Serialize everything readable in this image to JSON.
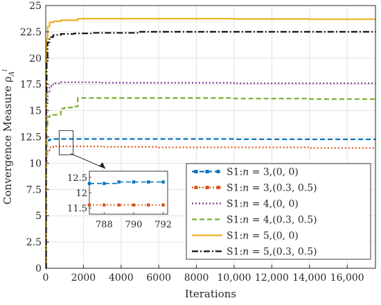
{
  "chart_data": {
    "type": "line",
    "xlabel": "Iterations",
    "ylabel": "Convergence Measure ρ",
    "ylabel_sub": "A",
    "ylabel_sup": "l",
    "xlim": [
      0,
      17500
    ],
    "ylim": [
      0,
      25
    ],
    "grid": true,
    "legend_position": "lower-right",
    "x_ticks": [
      {
        "value": 0,
        "label": "0"
      },
      {
        "value": 2000,
        "label": "2000"
      },
      {
        "value": 4000,
        "label": "4000"
      },
      {
        "value": 6000,
        "label": "6000"
      },
      {
        "value": 8000,
        "label": "8000"
      },
      {
        "value": 10000,
        "label": "10,000"
      },
      {
        "value": 12000,
        "label": "12,000"
      },
      {
        "value": 14000,
        "label": "14,000"
      },
      {
        "value": 16000,
        "label": "16,000"
      }
    ],
    "y_ticks": [
      {
        "value": 0,
        "label": "0"
      },
      {
        "value": 2.5,
        "label": "2.5"
      },
      {
        "value": 5,
        "label": "5"
      },
      {
        "value": 7.5,
        "label": "7.5"
      },
      {
        "value": 10,
        "label": "10"
      },
      {
        "value": 12.5,
        "label": "12.5"
      },
      {
        "value": 15,
        "label": "15"
      },
      {
        "value": 17.5,
        "label": "17.5"
      },
      {
        "value": 20,
        "label": "20"
      },
      {
        "value": 22.5,
        "label": "22.5"
      },
      {
        "value": 25,
        "label": "25"
      }
    ],
    "series": [
      {
        "name": "S1:n = 3,(0, 0)",
        "label_prefix": "S1:",
        "label_var": "n",
        "label_suffix": " = 3,(0, 0)",
        "color": "#0072bd",
        "style": "dashed-square",
        "x": [
          0,
          20,
          50,
          100,
          200,
          400,
          800,
          1500,
          3000,
          6000,
          10000,
          14000,
          17500
        ],
        "y": [
          0,
          11.2,
          11.9,
          12.15,
          12.25,
          12.3,
          12.3,
          12.3,
          12.3,
          12.3,
          12.28,
          12.27,
          12.25
        ]
      },
      {
        "name": "S1:n = 3,(0.3, 0.5)",
        "label_prefix": "S1:",
        "label_var": "n",
        "label_suffix": " = 3,(0.3, 0.5)",
        "color": "#d95319",
        "style": "dotted-square",
        "x": [
          0,
          20,
          50,
          100,
          200,
          400,
          800,
          1500,
          3000,
          6000,
          10000,
          14000,
          17500
        ],
        "y": [
          0,
          10.0,
          10.8,
          11.2,
          11.5,
          11.6,
          11.6,
          11.6,
          11.55,
          11.5,
          11.5,
          11.45,
          11.45
        ]
      },
      {
        "name": "S1:n = 4,(0, 0)",
        "label_prefix": "S1:",
        "label_var": "n",
        "label_suffix": " = 4,(0, 0)",
        "color": "#7e2f8e",
        "style": "dotted",
        "x": [
          0,
          20,
          50,
          100,
          200,
          300,
          500,
          800,
          1500,
          3000,
          6000,
          10000,
          14000,
          17500
        ],
        "y": [
          0,
          13.5,
          15.5,
          16.8,
          17.3,
          17.5,
          17.6,
          17.7,
          17.7,
          17.65,
          17.65,
          17.6,
          17.6,
          17.6
        ]
      },
      {
        "name": "S1:n = 4,(0.3, 0.5)",
        "label_prefix": "S1:",
        "label_var": "n",
        "label_suffix": " = 4,(0.3, 0.5)",
        "color": "#77ac30",
        "style": "dashed",
        "x": [
          0,
          20,
          50,
          100,
          200,
          300,
          500,
          800,
          1000,
          1500,
          1700,
          3000,
          6000,
          10000,
          14000,
          17500
        ],
        "y": [
          0,
          11.0,
          13.5,
          14.4,
          14.5,
          14.6,
          14.6,
          15.2,
          15.3,
          15.4,
          16.2,
          16.2,
          16.2,
          16.15,
          16.1,
          16.1
        ]
      },
      {
        "name": "S1:n = 5,(0, 0)",
        "label_prefix": "S1:",
        "label_var": "n",
        "label_suffix": " = 5,(0, 0)",
        "color": "#edb120",
        "style": "solid",
        "x": [
          0,
          20,
          50,
          100,
          200,
          400,
          800,
          1500,
          1700,
          3000,
          6000,
          10000,
          14000,
          17500
        ],
        "y": [
          0,
          19.5,
          21.8,
          23.0,
          23.4,
          23.5,
          23.6,
          23.6,
          23.75,
          23.75,
          23.75,
          23.72,
          23.7,
          23.7
        ]
      },
      {
        "name": "S1:n = 5,(0.3, 0.5)",
        "label_prefix": "S1:",
        "label_var": "n",
        "label_suffix": " = 5,(0.3, 0.5)",
        "color": "#111111",
        "style": "dashdot",
        "x": [
          0,
          20,
          50,
          100,
          200,
          400,
          800,
          1500,
          2500,
          5000,
          8000,
          12000,
          17500
        ],
        "y": [
          0,
          16.8,
          19.5,
          21.5,
          22.0,
          22.2,
          22.3,
          22.35,
          22.4,
          22.5,
          22.5,
          22.5,
          22.5
        ]
      }
    ],
    "inset": {
      "xlim": [
        787,
        792.3
      ],
      "ylim": [
        11.3,
        12.7
      ],
      "x_ticks": [
        {
          "value": 788,
          "label": "788"
        },
        {
          "value": 790,
          "label": "790"
        },
        {
          "value": 792,
          "label": "792"
        }
      ],
      "y_ticks": [
        {
          "value": 11.5,
          "label": "11.5"
        },
        {
          "value": 12,
          "label": "12"
        },
        {
          "value": 12.5,
          "label": "12.5"
        }
      ],
      "series": [
        {
          "color": "#0072bd",
          "style": "dashed-square",
          "x": [
            787,
            788,
            789,
            790,
            791,
            792
          ],
          "y": [
            12.3,
            12.3,
            12.35,
            12.35,
            12.35,
            12.35
          ]
        },
        {
          "color": "#d95319",
          "style": "dotted-square",
          "x": [
            787,
            788,
            789,
            790,
            791,
            792
          ],
          "y": [
            11.6,
            11.6,
            11.6,
            11.6,
            11.6,
            11.6
          ]
        }
      ]
    }
  }
}
